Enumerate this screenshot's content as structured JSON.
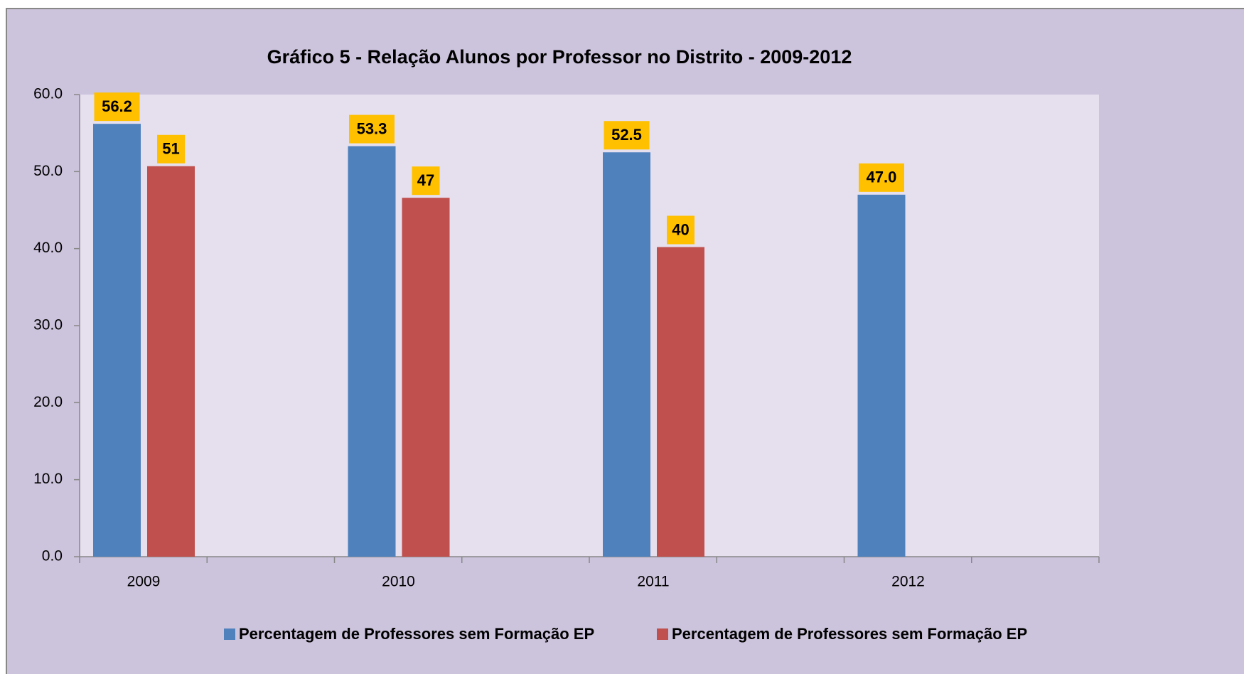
{
  "chart_data": {
    "type": "bar",
    "title": "Gráfico 5 - Relação Alunos por Professor no Distrito - 2009-2012",
    "categories": [
      "2009",
      "2010",
      "2011",
      "2012"
    ],
    "series": [
      {
        "name": "Percentagem de Professores sem Formação EP",
        "color": "#4f81bd",
        "values": [
          56.2,
          53.3,
          52.5,
          47.0
        ],
        "value_labels": [
          "56.2",
          "53.3",
          "52.5",
          "47.0"
        ]
      },
      {
        "name": "Percentagem de Professores sem Formação EP",
        "color": "#c0504d",
        "values": [
          50.7,
          46.6,
          40.2,
          null
        ],
        "value_labels": [
          "51",
          "47",
          "40",
          null
        ]
      }
    ],
    "ylim": [
      0,
      60
    ],
    "yticks": [
      {
        "value": 0,
        "label": "0.0"
      },
      {
        "value": 10,
        "label": "10.0"
      },
      {
        "value": 20,
        "label": "20.0"
      },
      {
        "value": 30,
        "label": "30.0"
      },
      {
        "value": 40,
        "label": "40.0"
      },
      {
        "value": 50,
        "label": "50.0"
      },
      {
        "value": 60,
        "label": "60.0"
      }
    ],
    "label_color": "#ffc000",
    "legend": "bottom"
  }
}
